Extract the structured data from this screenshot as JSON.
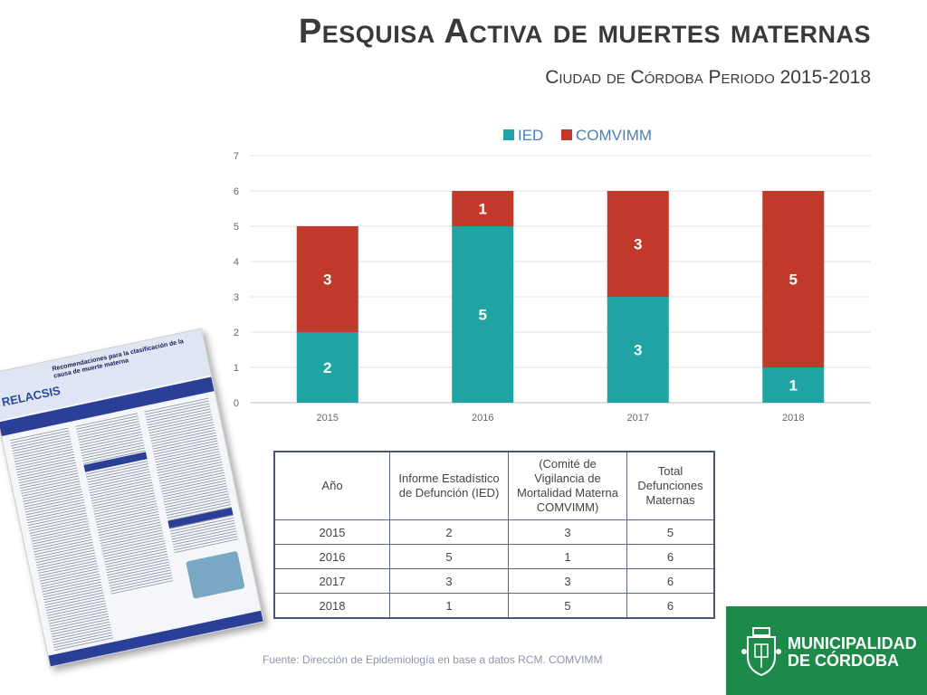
{
  "header": {
    "title": "Pesquisa Activa de muertes maternas",
    "subtitle": "Ciudad de Córdoba  Periodo 2015-2018"
  },
  "chart_data": {
    "type": "bar",
    "stacked": true,
    "categories": [
      "2015",
      "2016",
      "2017",
      "2018"
    ],
    "series": [
      {
        "name": "IED",
        "values": [
          2,
          5,
          3,
          1
        ],
        "color": "#1fa3a3"
      },
      {
        "name": "COMVIMM",
        "values": [
          3,
          1,
          3,
          5
        ],
        "color": "#c0392b"
      }
    ],
    "ylim": [
      0,
      7
    ],
    "yticks": [
      0,
      1,
      2,
      3,
      4,
      5,
      6,
      7
    ],
    "grid": true,
    "legend": "top-center",
    "data_labels": true
  },
  "table": {
    "headers": [
      "Año",
      "Informe Estadístico de Defunción (IED)",
      "(Comité de Vigilancia de Mortalidad Materna COMVIMM)",
      "Total Defunciones Maternas"
    ],
    "rows": [
      [
        "2015",
        "2",
        "3",
        "5"
      ],
      [
        "2016",
        "5",
        "1",
        "6"
      ],
      [
        "2017",
        "3",
        "3",
        "6"
      ],
      [
        "2018",
        "1",
        "5",
        "6"
      ]
    ]
  },
  "source": "Fuente: Dirección de Epidemiología en base a datos RCM. COMVIMM",
  "logo": {
    "line1": "MUNICIPALIDAD",
    "line2": "DE CÓRDOBA",
    "color": "#1e8a4a"
  },
  "poster": {
    "brand": "RELACSIS",
    "title": "Recomendaciones para la clasificación de la causa de muerte materna"
  }
}
